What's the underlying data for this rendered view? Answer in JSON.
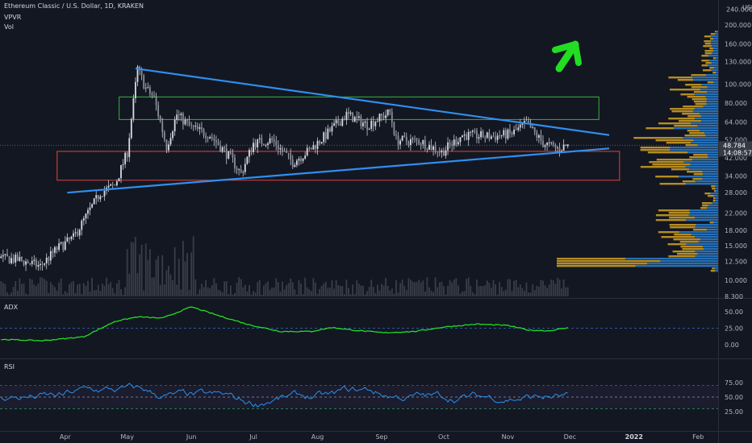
{
  "header": {
    "symbol_title": "Ethereum Classic / U.S. Dollar, 1D, KRAKEN",
    "indicator_vpvr": "VPVR",
    "indicator_vol": "Vol"
  },
  "price_axis": {
    "currency": "USD",
    "labels": [
      "240.000",
      "200.000",
      "160.000",
      "130.000",
      "100.000",
      "80.000",
      "64.000",
      "52.000",
      "42.000",
      "34.000",
      "28.000",
      "22.000",
      "18.000",
      "15.000",
      "12.500",
      "10.000",
      "8.300"
    ],
    "current_price": "48.784",
    "countdown": "14:08:57"
  },
  "adx_panel": {
    "label": "ADX",
    "axis_labels": [
      "50.00",
      "25.00",
      "0.00"
    ]
  },
  "rsi_panel": {
    "label": "RSI",
    "axis_labels": [
      "75.00",
      "50.00",
      "25.00"
    ]
  },
  "time_axis": {
    "labels": [
      "Apr",
      "May",
      "Jun",
      "Jul",
      "Aug",
      "Sep",
      "Oct",
      "Nov",
      "Dec",
      "2022",
      "Feb"
    ]
  },
  "colors": {
    "background": "#131722",
    "candle": "#c8cbd3",
    "trendline": "#2f8ff0",
    "support_box": "#e0443c",
    "resistance_box": "#35b53a",
    "arrow": "#22dd22",
    "adx_line": "#22dd22",
    "rsi_line": "#2a8fe8",
    "vpvr_up": "#d4a123",
    "vpvr_down": "#2a7fd0"
  },
  "chart_data": {
    "type": "candlestick",
    "title": "Ethereum Classic / U.S. Dollar, 1D, KRAKEN",
    "xlabel": "",
    "ylabel": "USD",
    "y_scale": "log",
    "ylim": [
      8.3,
      240
    ],
    "x_range": [
      "2021-03-01",
      "2022-02-28"
    ],
    "price_path": [
      [
        "2021-03-01",
        13.0
      ],
      [
        "2021-03-10",
        12.7
      ],
      [
        "2021-03-20",
        11.8
      ],
      [
        "2021-03-28",
        14.5
      ],
      [
        "2021-04-05",
        16.5
      ],
      [
        "2021-04-12",
        22.0
      ],
      [
        "2021-04-18",
        28.0
      ],
      [
        "2021-04-25",
        30.5
      ],
      [
        "2021-05-01",
        45.0
      ],
      [
        "2021-05-06",
        120.0
      ],
      [
        "2021-05-10",
        95.0
      ],
      [
        "2021-05-14",
        85.0
      ],
      [
        "2021-05-20",
        48.0
      ],
      [
        "2021-05-25",
        70.0
      ],
      [
        "2021-06-01",
        60.0
      ],
      [
        "2021-06-10",
        55.0
      ],
      [
        "2021-06-20",
        42.0
      ],
      [
        "2021-06-25",
        35.0
      ],
      [
        "2021-07-01",
        50.0
      ],
      [
        "2021-07-10",
        52.0
      ],
      [
        "2021-07-20",
        40.0
      ],
      [
        "2021-07-28",
        46.0
      ],
      [
        "2021-08-05",
        55.0
      ],
      [
        "2021-08-15",
        70.0
      ],
      [
        "2021-08-25",
        62.0
      ],
      [
        "2021-09-05",
        72.0
      ],
      [
        "2021-09-08",
        52.0
      ],
      [
        "2021-09-20",
        51.0
      ],
      [
        "2021-09-30",
        45.0
      ],
      [
        "2021-10-10",
        55.0
      ],
      [
        "2021-10-25",
        54.0
      ],
      [
        "2021-11-03",
        56.0
      ],
      [
        "2021-11-10",
        63.0
      ],
      [
        "2021-11-18",
        50.0
      ],
      [
        "2021-11-25",
        47.0
      ],
      [
        "2021-11-30",
        48.784
      ]
    ],
    "indicators": [
      "VPVR",
      "Vol",
      "ADX",
      "RSI"
    ],
    "annotations": {
      "descending_trendline": [
        [
          "2021-05-05",
          120
        ],
        [
          "2021-12-20",
          55
        ]
      ],
      "ascending_trendline": [
        [
          "2021-04-02",
          28
        ],
        [
          "2021-12-20",
          47
        ]
      ],
      "resistance_zone": {
        "from": "2021-05-01",
        "to": "2021-12-15",
        "low": 66,
        "high": 86
      },
      "support_zone": {
        "from": "2021-04-01",
        "to": "2021-12-25",
        "low": 33,
        "high": 45
      }
    },
    "adx_axis_ticks": [
      50,
      25,
      0
    ],
    "rsi_axis_ticks": [
      75,
      50,
      25
    ],
    "rsi_bands": [
      70,
      50,
      30
    ]
  }
}
